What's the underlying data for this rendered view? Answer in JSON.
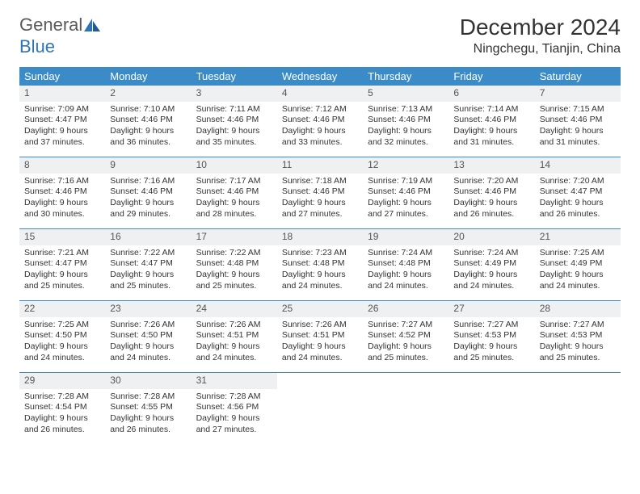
{
  "logo": {
    "word1": "General",
    "word2": "Blue"
  },
  "title": "December 2024",
  "subtitle": "Ningchegu, Tianjin, China",
  "colors": {
    "header_bg": "#3b8bc9",
    "header_text": "#ffffff",
    "daynum_bg": "#eef0f2",
    "border": "#3b8bc9",
    "logo_gray": "#5a5a5a",
    "logo_blue": "#2e75b6",
    "text": "#333333"
  },
  "day_names": [
    "Sunday",
    "Monday",
    "Tuesday",
    "Wednesday",
    "Thursday",
    "Friday",
    "Saturday"
  ],
  "weeks": [
    [
      {
        "n": "1",
        "sr": "Sunrise: 7:09 AM",
        "ss": "Sunset: 4:47 PM",
        "d1": "Daylight: 9 hours",
        "d2": "and 37 minutes."
      },
      {
        "n": "2",
        "sr": "Sunrise: 7:10 AM",
        "ss": "Sunset: 4:46 PM",
        "d1": "Daylight: 9 hours",
        "d2": "and 36 minutes."
      },
      {
        "n": "3",
        "sr": "Sunrise: 7:11 AM",
        "ss": "Sunset: 4:46 PM",
        "d1": "Daylight: 9 hours",
        "d2": "and 35 minutes."
      },
      {
        "n": "4",
        "sr": "Sunrise: 7:12 AM",
        "ss": "Sunset: 4:46 PM",
        "d1": "Daylight: 9 hours",
        "d2": "and 33 minutes."
      },
      {
        "n": "5",
        "sr": "Sunrise: 7:13 AM",
        "ss": "Sunset: 4:46 PM",
        "d1": "Daylight: 9 hours",
        "d2": "and 32 minutes."
      },
      {
        "n": "6",
        "sr": "Sunrise: 7:14 AM",
        "ss": "Sunset: 4:46 PM",
        "d1": "Daylight: 9 hours",
        "d2": "and 31 minutes."
      },
      {
        "n": "7",
        "sr": "Sunrise: 7:15 AM",
        "ss": "Sunset: 4:46 PM",
        "d1": "Daylight: 9 hours",
        "d2": "and 31 minutes."
      }
    ],
    [
      {
        "n": "8",
        "sr": "Sunrise: 7:16 AM",
        "ss": "Sunset: 4:46 PM",
        "d1": "Daylight: 9 hours",
        "d2": "and 30 minutes."
      },
      {
        "n": "9",
        "sr": "Sunrise: 7:16 AM",
        "ss": "Sunset: 4:46 PM",
        "d1": "Daylight: 9 hours",
        "d2": "and 29 minutes."
      },
      {
        "n": "10",
        "sr": "Sunrise: 7:17 AM",
        "ss": "Sunset: 4:46 PM",
        "d1": "Daylight: 9 hours",
        "d2": "and 28 minutes."
      },
      {
        "n": "11",
        "sr": "Sunrise: 7:18 AM",
        "ss": "Sunset: 4:46 PM",
        "d1": "Daylight: 9 hours",
        "d2": "and 27 minutes."
      },
      {
        "n": "12",
        "sr": "Sunrise: 7:19 AM",
        "ss": "Sunset: 4:46 PM",
        "d1": "Daylight: 9 hours",
        "d2": "and 27 minutes."
      },
      {
        "n": "13",
        "sr": "Sunrise: 7:20 AM",
        "ss": "Sunset: 4:46 PM",
        "d1": "Daylight: 9 hours",
        "d2": "and 26 minutes."
      },
      {
        "n": "14",
        "sr": "Sunrise: 7:20 AM",
        "ss": "Sunset: 4:47 PM",
        "d1": "Daylight: 9 hours",
        "d2": "and 26 minutes."
      }
    ],
    [
      {
        "n": "15",
        "sr": "Sunrise: 7:21 AM",
        "ss": "Sunset: 4:47 PM",
        "d1": "Daylight: 9 hours",
        "d2": "and 25 minutes."
      },
      {
        "n": "16",
        "sr": "Sunrise: 7:22 AM",
        "ss": "Sunset: 4:47 PM",
        "d1": "Daylight: 9 hours",
        "d2": "and 25 minutes."
      },
      {
        "n": "17",
        "sr": "Sunrise: 7:22 AM",
        "ss": "Sunset: 4:48 PM",
        "d1": "Daylight: 9 hours",
        "d2": "and 25 minutes."
      },
      {
        "n": "18",
        "sr": "Sunrise: 7:23 AM",
        "ss": "Sunset: 4:48 PM",
        "d1": "Daylight: 9 hours",
        "d2": "and 24 minutes."
      },
      {
        "n": "19",
        "sr": "Sunrise: 7:24 AM",
        "ss": "Sunset: 4:48 PM",
        "d1": "Daylight: 9 hours",
        "d2": "and 24 minutes."
      },
      {
        "n": "20",
        "sr": "Sunrise: 7:24 AM",
        "ss": "Sunset: 4:49 PM",
        "d1": "Daylight: 9 hours",
        "d2": "and 24 minutes."
      },
      {
        "n": "21",
        "sr": "Sunrise: 7:25 AM",
        "ss": "Sunset: 4:49 PM",
        "d1": "Daylight: 9 hours",
        "d2": "and 24 minutes."
      }
    ],
    [
      {
        "n": "22",
        "sr": "Sunrise: 7:25 AM",
        "ss": "Sunset: 4:50 PM",
        "d1": "Daylight: 9 hours",
        "d2": "and 24 minutes."
      },
      {
        "n": "23",
        "sr": "Sunrise: 7:26 AM",
        "ss": "Sunset: 4:50 PM",
        "d1": "Daylight: 9 hours",
        "d2": "and 24 minutes."
      },
      {
        "n": "24",
        "sr": "Sunrise: 7:26 AM",
        "ss": "Sunset: 4:51 PM",
        "d1": "Daylight: 9 hours",
        "d2": "and 24 minutes."
      },
      {
        "n": "25",
        "sr": "Sunrise: 7:26 AM",
        "ss": "Sunset: 4:51 PM",
        "d1": "Daylight: 9 hours",
        "d2": "and 24 minutes."
      },
      {
        "n": "26",
        "sr": "Sunrise: 7:27 AM",
        "ss": "Sunset: 4:52 PM",
        "d1": "Daylight: 9 hours",
        "d2": "and 25 minutes."
      },
      {
        "n": "27",
        "sr": "Sunrise: 7:27 AM",
        "ss": "Sunset: 4:53 PM",
        "d1": "Daylight: 9 hours",
        "d2": "and 25 minutes."
      },
      {
        "n": "28",
        "sr": "Sunrise: 7:27 AM",
        "ss": "Sunset: 4:53 PM",
        "d1": "Daylight: 9 hours",
        "d2": "and 25 minutes."
      }
    ],
    [
      {
        "n": "29",
        "sr": "Sunrise: 7:28 AM",
        "ss": "Sunset: 4:54 PM",
        "d1": "Daylight: 9 hours",
        "d2": "and 26 minutes."
      },
      {
        "n": "30",
        "sr": "Sunrise: 7:28 AM",
        "ss": "Sunset: 4:55 PM",
        "d1": "Daylight: 9 hours",
        "d2": "and 26 minutes."
      },
      {
        "n": "31",
        "sr": "Sunrise: 7:28 AM",
        "ss": "Sunset: 4:56 PM",
        "d1": "Daylight: 9 hours",
        "d2": "and 27 minutes."
      },
      null,
      null,
      null,
      null
    ]
  ]
}
